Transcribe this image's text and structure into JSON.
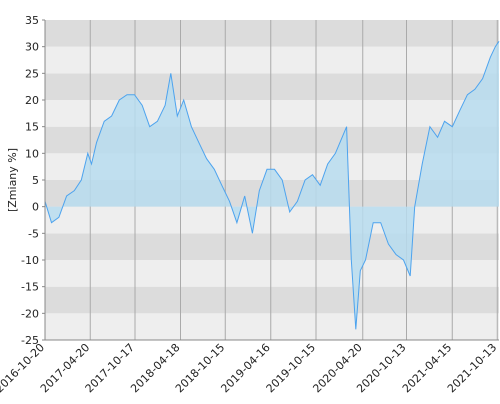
{
  "chart_data": {
    "type": "area",
    "y_label": "[Zmiany %]",
    "x": [
      "2016-10-20",
      "2016-11-15",
      "2016-12-15",
      "2017-01-15",
      "2017-02-15",
      "2017-03-15",
      "2017-04-10",
      "2017-04-25",
      "2017-05-15",
      "2017-06-15",
      "2017-07-15",
      "2017-08-15",
      "2017-09-15",
      "2017-10-15",
      "2017-11-15",
      "2017-12-15",
      "2018-01-15",
      "2018-02-15",
      "2018-03-10",
      "2018-04-05",
      "2018-05-01",
      "2018-06-01",
      "2018-07-01",
      "2018-08-01",
      "2018-09-01",
      "2018-10-01",
      "2018-11-01",
      "2018-12-01",
      "2019-01-01",
      "2019-02-01",
      "2019-03-01",
      "2019-04-01",
      "2019-05-01",
      "2019-06-01",
      "2019-07-01",
      "2019-08-01",
      "2019-09-01",
      "2019-10-01",
      "2019-11-01",
      "2019-12-01",
      "2020-01-01",
      "2020-02-15",
      "2020-03-05",
      "2020-03-23",
      "2020-04-10",
      "2020-05-01",
      "2020-06-01",
      "2020-07-01",
      "2020-08-01",
      "2020-09-01",
      "2020-10-01",
      "2020-10-28",
      "2020-11-15",
      "2020-12-15",
      "2021-01-15",
      "2021-02-15",
      "2021-03-15",
      "2021-04-15",
      "2021-05-15",
      "2021-06-15",
      "2021-07-15",
      "2021-08-15",
      "2021-09-15",
      "2021-10-05",
      "2021-10-20"
    ],
    "series": [
      {
        "name": "Zmiany",
        "color": "#4da3ee",
        "fill": "#b7dcee",
        "values": [
          1,
          -3,
          -2,
          2,
          3,
          5,
          10,
          8,
          12,
          16,
          17,
          20,
          21,
          21,
          19,
          15,
          16,
          19,
          25,
          17,
          20,
          15,
          12,
          9,
          7,
          4,
          1,
          -3,
          2,
          -5,
          3,
          7,
          7,
          5,
          -1,
          1,
          5,
          6,
          4,
          8,
          10,
          15,
          -10,
          -23,
          -12,
          -10,
          -3,
          -3,
          -7,
          -9,
          -10,
          -13,
          0,
          8,
          15,
          13,
          16,
          15,
          18,
          21,
          22,
          24,
          28,
          30,
          31
        ]
      }
    ],
    "xlim": [
      "2016-10-20",
      "2021-10-20"
    ],
    "xticks": [
      "2016-10-20",
      "2017-04-20",
      "2017-10-17",
      "2018-04-18",
      "2018-10-15",
      "2019-04-16",
      "2019-10-15",
      "2020-04-20",
      "2020-10-13",
      "2021-04-15",
      "2021-10-13"
    ],
    "ylim": [
      -25,
      35
    ],
    "yticks": [
      -25,
      -20,
      -15,
      -10,
      -5,
      0,
      5,
      10,
      15,
      20,
      25,
      30,
      35
    ],
    "grid": true
  }
}
